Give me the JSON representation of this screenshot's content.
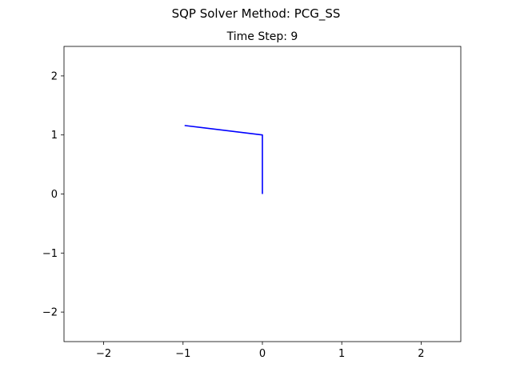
{
  "figure": {
    "suptitle": "SQP Solver Method: PCG_SS"
  },
  "chart_data": {
    "type": "line",
    "title": "Time Step: 9",
    "xlabel": "",
    "ylabel": "",
    "xlim": [
      -2.5,
      2.5
    ],
    "ylim": [
      -2.5,
      2.5
    ],
    "xticks": [
      -2,
      -1,
      0,
      1,
      2
    ],
    "yticks": [
      -2,
      -1,
      0,
      1,
      2
    ],
    "xtick_labels": [
      "−2",
      "−1",
      "0",
      "1",
      "2"
    ],
    "ytick_labels": [
      "−2",
      "−1",
      "0",
      "1",
      "2"
    ],
    "grid": false,
    "legend": "none",
    "series": [
      {
        "x": [
          0.0,
          0.0,
          -0.98
        ],
        "y": [
          0.0,
          1.0,
          1.16
        ],
        "color": "#0000ff"
      }
    ]
  }
}
